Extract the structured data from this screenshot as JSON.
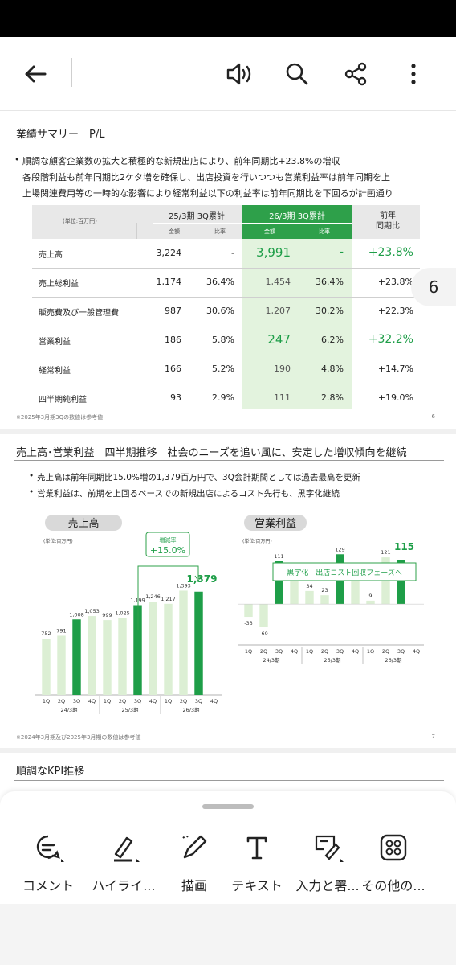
{
  "page_badge": "6",
  "page1": {
    "title": "業績サマリー　P/L",
    "bullets": [
      "順調な顧客企業数の拡大と積極的な新規出店により、前年同期比+23.8%の増収",
      "各段階利益も前年同期比2ケタ増を確保し、出店投資を行いつつも営業利益率は前年同期を上",
      "上場関連費用等の一時的な影響により経常利益以下の利益率は前年同期比を下回るが計画通り"
    ],
    "table": {
      "unit": "(単位:百万円)",
      "group_prev": "25/3期 3Q累計",
      "group_curr": "26/3期 3Q累計",
      "group_yoy": "前年\n同期比",
      "sub_amount": "金額",
      "sub_ratio": "比率",
      "rows": [
        {
          "label": "売上高",
          "prev_amt": "3,224",
          "prev_ratio": "-",
          "curr_amt": "3,991",
          "curr_ratio": "-",
          "yoy": "+23.8%"
        },
        {
          "label": "売上総利益",
          "prev_amt": "1,174",
          "prev_ratio": "36.4%",
          "curr_amt": "1,454",
          "curr_ratio": "36.4%",
          "yoy": "+23.8%"
        },
        {
          "label": "販売費及び一般管理費",
          "prev_amt": "987",
          "prev_ratio": "30.6%",
          "curr_amt": "1,207",
          "curr_ratio": "30.2%",
          "yoy": "+22.3%"
        },
        {
          "label": "営業利益",
          "prev_amt": "186",
          "prev_ratio": "5.8%",
          "curr_amt": "247",
          "curr_ratio": "6.2%",
          "yoy": "+32.2%"
        },
        {
          "label": "経常利益",
          "prev_amt": "166",
          "prev_ratio": "5.2%",
          "curr_amt": "190",
          "curr_ratio": "4.8%",
          "yoy": "+14.7%"
        },
        {
          "label": "四半期純利益",
          "prev_amt": "93",
          "prev_ratio": "2.9%",
          "curr_amt": "111",
          "curr_ratio": "2.8%",
          "yoy": "+19.0%"
        }
      ]
    },
    "note": "※2025年3月期3Qの数値は参考値",
    "page_number": "6"
  },
  "page2": {
    "title": "売上高･営業利益　四半期推移　社会のニーズを追い風に、安定した増収傾向を継続",
    "bullets": [
      "売上高は前年同期比15.0%増の1,379百万円で、3Q会計期間としては過去最高を更新",
      "営業利益は、前期を上回るペースでの新規出店によるコスト先行も、黒字化継続"
    ],
    "note": "※2024年3月期及び2025年3月期の数値は参考値",
    "page_number": "7"
  },
  "page3": {
    "title": "順調なKPI推移"
  },
  "chart_data": [
    {
      "type": "bar",
      "title": "売上高",
      "unit": "(単位:百万円)",
      "callout": "増減率\n+15.0%",
      "categories": [
        "1Q",
        "2Q",
        "3Q",
        "4Q",
        "1Q",
        "2Q",
        "3Q",
        "4Q",
        "1Q",
        "2Q",
        "3Q",
        "4Q"
      ],
      "groups": [
        "24/3期",
        "25/3期",
        "26/3期"
      ],
      "values": [
        752,
        791,
        1008,
        1053,
        999,
        1025,
        1199,
        1246,
        1217,
        1393,
        1379,
        null
      ],
      "labels": [
        "752",
        "791",
        "1,008",
        "1,053",
        "999",
        "1,025",
        "1,199",
        "1,246",
        "1,217",
        "1,393",
        "1,379",
        ""
      ],
      "highlight": [
        false,
        false,
        true,
        false,
        false,
        false,
        true,
        false,
        false,
        false,
        true,
        false
      ],
      "colors": {
        "highlight": "#1e9e48",
        "normal": "#dcefd4"
      }
    },
    {
      "type": "bar",
      "title": "営業利益",
      "unit": "(単位:百万円)",
      "callout": "黒字化　出店コスト回収フェーズへ",
      "categories": [
        "1Q",
        "2Q",
        "3Q",
        "4Q",
        "1Q",
        "2Q",
        "3Q",
        "4Q",
        "1Q",
        "2Q",
        "3Q",
        "4Q"
      ],
      "groups": [
        "24/3期",
        "25/3期",
        "26/3期"
      ],
      "values": [
        -33,
        -60,
        111,
        89,
        34,
        23,
        129,
        76,
        9,
        121,
        115,
        null
      ],
      "labels": [
        "-33",
        "-60",
        "111",
        "89",
        "34",
        "23",
        "129",
        "76",
        "9",
        "121",
        "115",
        ""
      ],
      "highlight": [
        false,
        false,
        true,
        false,
        false,
        false,
        true,
        false,
        false,
        false,
        true,
        false
      ],
      "colors": {
        "highlight": "#1e9e48",
        "normal": "#dcefd4"
      }
    }
  ],
  "tools": [
    {
      "label": "コメント",
      "icon": "comment-icon"
    },
    {
      "label": "ハイライ...",
      "icon": "highlighter-icon"
    },
    {
      "label": "描画",
      "icon": "draw-icon"
    },
    {
      "label": "テキスト",
      "icon": "text-icon"
    },
    {
      "label": "入力と署...",
      "icon": "sign-icon"
    },
    {
      "label": "その他の...",
      "icon": "more-tools-icon"
    }
  ]
}
